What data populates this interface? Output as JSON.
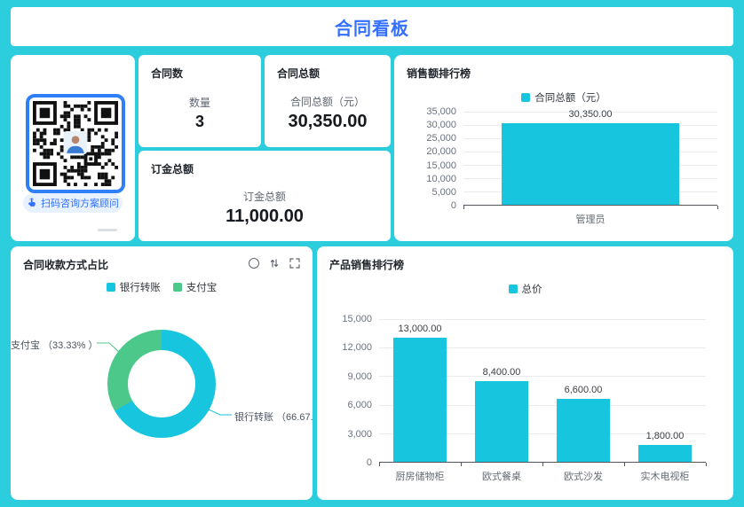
{
  "page": {
    "title": "合同看板",
    "accent": "#3370ff",
    "background": "#2ccede"
  },
  "qr_panel": {
    "button_label": "扫码咨询方案顾问",
    "icons": [
      "pointer-hand-icon",
      "qr-code",
      "avatar"
    ]
  },
  "metrics": [
    {
      "title": "合同数",
      "label": "数量",
      "value": "3"
    },
    {
      "title": "合同总额",
      "label": "合同总额（元）",
      "value": "30,350.00"
    },
    {
      "title": "订金总额",
      "label": "订金总额",
      "value": "11,000.00"
    }
  ],
  "donut_tools": [
    "refresh-icon",
    "sort-icon",
    "fullscreen-icon"
  ],
  "chart_data": [
    {
      "type": "bar",
      "title": "销售额排行榜",
      "legend": [
        "合同总额（元）"
      ],
      "color": "#17c5de",
      "categories": [
        "管理员"
      ],
      "values": [
        30350
      ],
      "value_labels": [
        "30,350.00"
      ],
      "ylim": [
        0,
        35000
      ],
      "ytick_step": 5000,
      "ytick_labels": [
        "0",
        "5,000",
        "10,000",
        "15,000",
        "20,000",
        "25,000",
        "30,000",
        "35,000"
      ],
      "bar_ratio": 0.7,
      "grid": true,
      "legend_position": "top-center"
    },
    {
      "type": "pie",
      "title": "合同收款方式占比",
      "donut": true,
      "legend": [
        "银行转账",
        "支付宝"
      ],
      "series": [
        {
          "name": "银行转账",
          "value_pct": 66.67,
          "color": "#17c5de",
          "callout": "银行转账 （66.67..."
        },
        {
          "name": "支付宝",
          "value_pct": 33.33,
          "color": "#4cc98a",
          "callout": "支付宝 （33.33% ）"
        }
      ],
      "legend_position": "top-center"
    },
    {
      "type": "bar",
      "title": "产品销售排行榜",
      "legend": [
        "总价"
      ],
      "color": "#17c5de",
      "categories": [
        "厨房储物柜",
        "欧式餐桌",
        "欧式沙发",
        "实木电视柜"
      ],
      "values": [
        13000,
        8400,
        6600,
        1800
      ],
      "value_labels": [
        "13,000.00",
        "8,400.00",
        "6,600.00",
        "1,800.00"
      ],
      "ylim": [
        0,
        15000
      ],
      "ytick_step": 3000,
      "ytick_labels": [
        "0",
        "3,000",
        "6,000",
        "9,000",
        "12,000",
        "15,000"
      ],
      "bar_ratio": 0.65,
      "grid": true,
      "legend_position": "top-center"
    }
  ]
}
